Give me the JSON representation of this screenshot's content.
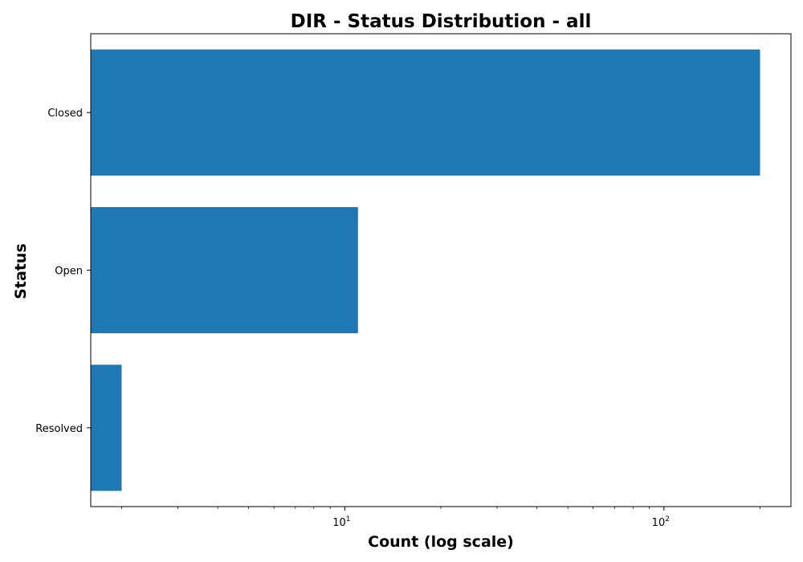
{
  "chart_data": {
    "type": "bar",
    "orientation": "horizontal",
    "title": "DIR - Status Distribution - all",
    "xlabel": "Count (log scale)",
    "ylabel": "Status",
    "x_scale": "log",
    "xlim": [
      1.6,
      250
    ],
    "x_ticks": [
      {
        "base": "10",
        "exp": "1",
        "value": 10
      },
      {
        "base": "10",
        "exp": "2",
        "value": 100
      }
    ],
    "categories": [
      "Closed",
      "Open",
      "Resolved"
    ],
    "values": [
      200,
      11,
      2
    ],
    "bar_color": "#1f77b4",
    "grid": false,
    "legend": "none"
  }
}
